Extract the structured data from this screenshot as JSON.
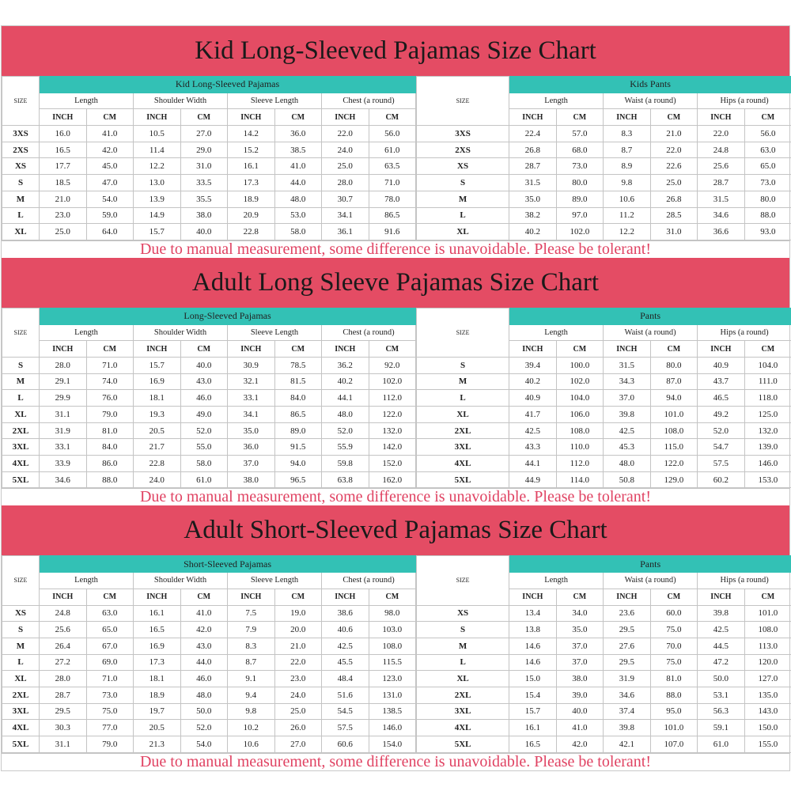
{
  "colors": {
    "title_band": "#e44c64",
    "group_header": "#33c1b5",
    "disclaimer_text": "#e04262"
  },
  "size_label": "SIZE",
  "units": [
    "INCH",
    "CM"
  ],
  "sections": [
    {
      "title": "Kid Long-Sleeved Pajamas Size Chart",
      "disclaimer": "Due to manual measurement, some difference is unavoidable. Please be tolerant!",
      "tables": [
        {
          "group": "Kid Long-Sleeved Pajamas",
          "measures": [
            "Length",
            "Shoulder Width",
            "Sleeve Length",
            "Chest (a round)"
          ],
          "rows": [
            [
              "3XS",
              "16.0",
              "41.0",
              "10.5",
              "27.0",
              "14.2",
              "36.0",
              "22.0",
              "56.0"
            ],
            [
              "2XS",
              "16.5",
              "42.0",
              "11.4",
              "29.0",
              "15.2",
              "38.5",
              "24.0",
              "61.0"
            ],
            [
              "XS",
              "17.7",
              "45.0",
              "12.2",
              "31.0",
              "16.1",
              "41.0",
              "25.0",
              "63.5"
            ],
            [
              "S",
              "18.5",
              "47.0",
              "13.0",
              "33.5",
              "17.3",
              "44.0",
              "28.0",
              "71.0"
            ],
            [
              "M",
              "21.0",
              "54.0",
              "13.9",
              "35.5",
              "18.9",
              "48.0",
              "30.7",
              "78.0"
            ],
            [
              "L",
              "23.0",
              "59.0",
              "14.9",
              "38.0",
              "20.9",
              "53.0",
              "34.1",
              "86.5"
            ],
            [
              "XL",
              "25.0",
              "64.0",
              "15.7",
              "40.0",
              "22.8",
              "58.0",
              "36.1",
              "91.6"
            ]
          ]
        },
        {
          "group": "Kids Pants",
          "measures": [
            "Length",
            "Waist (a round)",
            "Hips (a round)"
          ],
          "rows": [
            [
              "3XS",
              "22.4",
              "57.0",
              "8.3",
              "21.0",
              "22.0",
              "56.0"
            ],
            [
              "2XS",
              "26.8",
              "68.0",
              "8.7",
              "22.0",
              "24.8",
              "63.0"
            ],
            [
              "XS",
              "28.7",
              "73.0",
              "8.9",
              "22.6",
              "25.6",
              "65.0"
            ],
            [
              "S",
              "31.5",
              "80.0",
              "9.8",
              "25.0",
              "28.7",
              "73.0"
            ],
            [
              "M",
              "35.0",
              "89.0",
              "10.6",
              "26.8",
              "31.5",
              "80.0"
            ],
            [
              "L",
              "38.2",
              "97.0",
              "11.2",
              "28.5",
              "34.6",
              "88.0"
            ],
            [
              "XL",
              "40.2",
              "102.0",
              "12.2",
              "31.0",
              "36.6",
              "93.0"
            ]
          ]
        }
      ]
    },
    {
      "title": "Adult Long Sleeve Pajamas Size Chart",
      "disclaimer": "Due to manual measurement, some difference is unavoidable. Please be tolerant!",
      "tables": [
        {
          "group": "Long-Sleeved Pajamas",
          "measures": [
            "Length",
            "Shoulder Width",
            "Sleeve Length",
            "Chest (a round)"
          ],
          "rows": [
            [
              "S",
              "28.0",
              "71.0",
              "15.7",
              "40.0",
              "30.9",
              "78.5",
              "36.2",
              "92.0"
            ],
            [
              "M",
              "29.1",
              "74.0",
              "16.9",
              "43.0",
              "32.1",
              "81.5",
              "40.2",
              "102.0"
            ],
            [
              "L",
              "29.9",
              "76.0",
              "18.1",
              "46.0",
              "33.1",
              "84.0",
              "44.1",
              "112.0"
            ],
            [
              "XL",
              "31.1",
              "79.0",
              "19.3",
              "49.0",
              "34.1",
              "86.5",
              "48.0",
              "122.0"
            ],
            [
              "2XL",
              "31.9",
              "81.0",
              "20.5",
              "52.0",
              "35.0",
              "89.0",
              "52.0",
              "132.0"
            ],
            [
              "3XL",
              "33.1",
              "84.0",
              "21.7",
              "55.0",
              "36.0",
              "91.5",
              "55.9",
              "142.0"
            ],
            [
              "4XL",
              "33.9",
              "86.0",
              "22.8",
              "58.0",
              "37.0",
              "94.0",
              "59.8",
              "152.0"
            ],
            [
              "5XL",
              "34.6",
              "88.0",
              "24.0",
              "61.0",
              "38.0",
              "96.5",
              "63.8",
              "162.0"
            ]
          ]
        },
        {
          "group": "Pants",
          "measures": [
            "Length",
            "Waist (a round)",
            "Hips (a round)"
          ],
          "rows": [
            [
              "S",
              "39.4",
              "100.0",
              "31.5",
              "80.0",
              "40.9",
              "104.0"
            ],
            [
              "M",
              "40.2",
              "102.0",
              "34.3",
              "87.0",
              "43.7",
              "111.0"
            ],
            [
              "L",
              "40.9",
              "104.0",
              "37.0",
              "94.0",
              "46.5",
              "118.0"
            ],
            [
              "XL",
              "41.7",
              "106.0",
              "39.8",
              "101.0",
              "49.2",
              "125.0"
            ],
            [
              "2XL",
              "42.5",
              "108.0",
              "42.5",
              "108.0",
              "52.0",
              "132.0"
            ],
            [
              "3XL",
              "43.3",
              "110.0",
              "45.3",
              "115.0",
              "54.7",
              "139.0"
            ],
            [
              "4XL",
              "44.1",
              "112.0",
              "48.0",
              "122.0",
              "57.5",
              "146.0"
            ],
            [
              "5XL",
              "44.9",
              "114.0",
              "50.8",
              "129.0",
              "60.2",
              "153.0"
            ]
          ]
        }
      ]
    },
    {
      "title": "Adult Short-Sleeved Pajamas Size Chart",
      "disclaimer": "Due to manual measurement, some difference is unavoidable. Please be tolerant!",
      "tables": [
        {
          "group": "Short-Sleeved Pajamas",
          "measures": [
            "Length",
            "Shoulder Width",
            "Sleeve Length",
            "Chest (a round)"
          ],
          "rows": [
            [
              "XS",
              "24.8",
              "63.0",
              "16.1",
              "41.0",
              "7.5",
              "19.0",
              "38.6",
              "98.0"
            ],
            [
              "S",
              "25.6",
              "65.0",
              "16.5",
              "42.0",
              "7.9",
              "20.0",
              "40.6",
              "103.0"
            ],
            [
              "M",
              "26.4",
              "67.0",
              "16.9",
              "43.0",
              "8.3",
              "21.0",
              "42.5",
              "108.0"
            ],
            [
              "L",
              "27.2",
              "69.0",
              "17.3",
              "44.0",
              "8.7",
              "22.0",
              "45.5",
              "115.5"
            ],
            [
              "XL",
              "28.0",
              "71.0",
              "18.1",
              "46.0",
              "9.1",
              "23.0",
              "48.4",
              "123.0"
            ],
            [
              "2XL",
              "28.7",
              "73.0",
              "18.9",
              "48.0",
              "9.4",
              "24.0",
              "51.6",
              "131.0"
            ],
            [
              "3XL",
              "29.5",
              "75.0",
              "19.7",
              "50.0",
              "9.8",
              "25.0",
              "54.5",
              "138.5"
            ],
            [
              "4XL",
              "30.3",
              "77.0",
              "20.5",
              "52.0",
              "10.2",
              "26.0",
              "57.5",
              "146.0"
            ],
            [
              "5XL",
              "31.1",
              "79.0",
              "21.3",
              "54.0",
              "10.6",
              "27.0",
              "60.6",
              "154.0"
            ]
          ]
        },
        {
          "group": "Pants",
          "measures": [
            "Length",
            "Waist (a round)",
            "Hips (a round)"
          ],
          "rows": [
            [
              "XS",
              "13.4",
              "34.0",
              "23.6",
              "60.0",
              "39.8",
              "101.0"
            ],
            [
              "S",
              "13.8",
              "35.0",
              "29.5",
              "75.0",
              "42.5",
              "108.0"
            ],
            [
              "M",
              "14.6",
              "37.0",
              "27.6",
              "70.0",
              "44.5",
              "113.0"
            ],
            [
              "L",
              "14.6",
              "37.0",
              "29.5",
              "75.0",
              "47.2",
              "120.0"
            ],
            [
              "XL",
              "15.0",
              "38.0",
              "31.9",
              "81.0",
              "50.0",
              "127.0"
            ],
            [
              "2XL",
              "15.4",
              "39.0",
              "34.6",
              "88.0",
              "53.1",
              "135.0"
            ],
            [
              "3XL",
              "15.7",
              "40.0",
              "37.4",
              "95.0",
              "56.3",
              "143.0"
            ],
            [
              "4XL",
              "16.1",
              "41.0",
              "39.8",
              "101.0",
              "59.1",
              "150.0"
            ],
            [
              "5XL",
              "16.5",
              "42.0",
              "42.1",
              "107.0",
              "61.0",
              "155.0"
            ]
          ]
        }
      ]
    }
  ]
}
